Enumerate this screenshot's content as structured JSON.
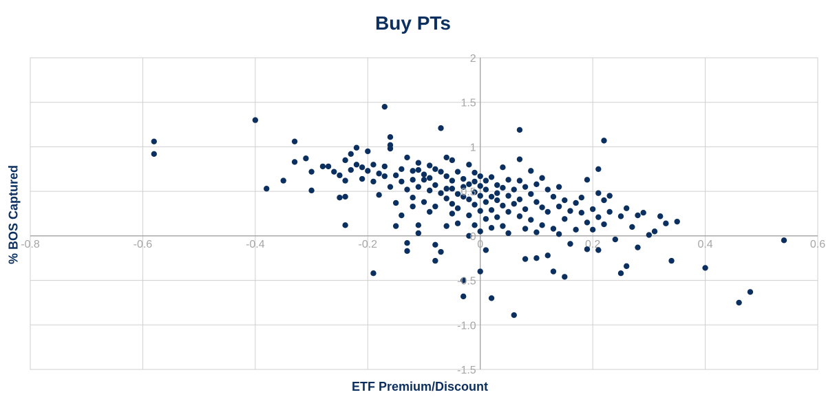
{
  "chart_data": {
    "type": "scatter",
    "title": "Buy PTs",
    "xlabel": "ETF Premium/Discount",
    "ylabel": "% BOS Captured",
    "xlim": [
      -0.8,
      0.6
    ],
    "ylim": [
      -1.5,
      2
    ],
    "x_ticks": [
      -0.8,
      -0.6,
      -0.4,
      -0.2,
      0,
      0.2,
      0.4,
      0.6
    ],
    "x_tick_labels": [
      "-0.8",
      "-0.6",
      "-0.4",
      "-0.2",
      "0",
      "0.2",
      "0.4",
      "0.6"
    ],
    "y_ticks": [
      -1.5,
      -1,
      -0.5,
      0,
      0.5,
      1,
      1.5,
      2
    ],
    "y_tick_labels": [
      "-1.5",
      "-1.0",
      "-0.5",
      "0",
      "0.5",
      "1",
      "1.5",
      "2"
    ],
    "grid": true,
    "colors": {
      "points": "#0b2f5e",
      "grid": "#cfcfcf",
      "title": "#0b2f5e",
      "ticks": "#a6a6a6"
    },
    "points": [
      [
        -0.58,
        1.06
      ],
      [
        -0.58,
        0.92
      ],
      [
        -0.4,
        1.3
      ],
      [
        -0.38,
        0.53
      ],
      [
        -0.35,
        0.62
      ],
      [
        -0.33,
        1.06
      ],
      [
        -0.33,
        0.83
      ],
      [
        -0.31,
        0.87
      ],
      [
        -0.3,
        0.51
      ],
      [
        -0.3,
        0.72
      ],
      [
        -0.28,
        0.78
      ],
      [
        -0.27,
        0.78
      ],
      [
        -0.26,
        0.72
      ],
      [
        -0.25,
        0.68
      ],
      [
        -0.25,
        0.43
      ],
      [
        -0.24,
        0.62
      ],
      [
        -0.24,
        0.85
      ],
      [
        -0.24,
        0.12
      ],
      [
        -0.24,
        0.44
      ],
      [
        -0.23,
        0.92
      ],
      [
        -0.23,
        0.74
      ],
      [
        -0.22,
        0.99
      ],
      [
        -0.22,
        0.8
      ],
      [
        -0.21,
        0.64
      ],
      [
        -0.21,
        0.77
      ],
      [
        -0.2,
        0.95
      ],
      [
        -0.2,
        0.73
      ],
      [
        -0.19,
        0.8
      ],
      [
        -0.19,
        0.61
      ],
      [
        -0.19,
        -0.42
      ],
      [
        -0.18,
        0.7
      ],
      [
        -0.18,
        0.46
      ],
      [
        -0.17,
        1.45
      ],
      [
        -0.17,
        0.67
      ],
      [
        -0.17,
        0.78
      ],
      [
        -0.16,
        1.11
      ],
      [
        -0.16,
        1.02
      ],
      [
        -0.16,
        0.98
      ],
      [
        -0.16,
        0.55
      ],
      [
        -0.15,
        0.68
      ],
      [
        -0.15,
        0.37
      ],
      [
        -0.15,
        0.11
      ],
      [
        -0.14,
        0.61
      ],
      [
        -0.14,
        0.75
      ],
      [
        -0.14,
        0.23
      ],
      [
        -0.13,
        0.88
      ],
      [
        -0.13,
        0.52
      ],
      [
        -0.13,
        -0.08
      ],
      [
        -0.13,
        -0.17
      ],
      [
        -0.12,
        0.73
      ],
      [
        -0.12,
        0.63
      ],
      [
        -0.12,
        0.33
      ],
      [
        -0.12,
        0.43
      ],
      [
        -0.11,
        0.74
      ],
      [
        -0.11,
        0.82
      ],
      [
        -0.11,
        0.55
      ],
      [
        -0.11,
        0.12
      ],
      [
        -0.11,
        0.03
      ],
      [
        -0.1,
        0.63
      ],
      [
        -0.1,
        0.38
      ],
      [
        -0.1,
        0.69
      ],
      [
        -0.09,
        0.79
      ],
      [
        -0.09,
        0.51
      ],
      [
        -0.09,
        0.27
      ],
      [
        -0.09,
        0.65
      ],
      [
        -0.08,
        0.33
      ],
      [
        -0.08,
        0.75
      ],
      [
        -0.08,
        -0.1
      ],
      [
        -0.08,
        -0.28
      ],
      [
        -0.08,
        0.57
      ],
      [
        -0.07,
        1.21
      ],
      [
        -0.07,
        0.72
      ],
      [
        -0.07,
        0.48
      ],
      [
        -0.07,
        -0.18
      ],
      [
        -0.06,
        0.67
      ],
      [
        -0.06,
        0.88
      ],
      [
        -0.06,
        0.53
      ],
      [
        -0.06,
        0.42
      ],
      [
        -0.06,
        0.11
      ],
      [
        -0.05,
        0.85
      ],
      [
        -0.05,
        0.62
      ],
      [
        -0.05,
        0.36
      ],
      [
        -0.05,
        0.53
      ],
      [
        -0.05,
        0.25
      ],
      [
        -0.04,
        0.72
      ],
      [
        -0.04,
        0.47
      ],
      [
        -0.04,
        0.31
      ],
      [
        -0.04,
        0.14
      ],
      [
        -0.03,
        0.64
      ],
      [
        -0.03,
        0.44
      ],
      [
        -0.03,
        0.55
      ],
      [
        -0.03,
        -0.5
      ],
      [
        -0.03,
        -0.68
      ],
      [
        -0.02,
        0.8
      ],
      [
        -0.02,
        0.41
      ],
      [
        -0.02,
        0.23
      ],
      [
        -0.02,
        0.58
      ],
      [
        -0.02,
        0.0
      ],
      [
        -0.01,
        0.71
      ],
      [
        -0.01,
        0.49
      ],
      [
        -0.01,
        0.35
      ],
      [
        -0.01,
        0.12
      ],
      [
        -0.01,
        0.61
      ],
      [
        0.0,
        0.67
      ],
      [
        0.0,
        0.45
      ],
      [
        0.0,
        0.28
      ],
      [
        0.0,
        0.05
      ],
      [
        0.0,
        -0.4
      ],
      [
        0.0,
        0.56
      ],
      [
        0.01,
        0.52
      ],
      [
        0.01,
        0.38
      ],
      [
        0.01,
        0.62
      ],
      [
        0.01,
        -0.16
      ],
      [
        0.01,
        0.19
      ],
      [
        0.02,
        0.44
      ],
      [
        0.02,
        0.66
      ],
      [
        0.02,
        0.29
      ],
      [
        0.02,
        -0.7
      ],
      [
        0.02,
        0.09
      ],
      [
        0.03,
        0.57
      ],
      [
        0.03,
        0.4
      ],
      [
        0.03,
        0.21
      ],
      [
        0.03,
        0.48
      ],
      [
        0.04,
        0.77
      ],
      [
        0.04,
        0.34
      ],
      [
        0.04,
        0.54
      ],
      [
        0.04,
        0.11
      ],
      [
        0.05,
        0.63
      ],
      [
        0.05,
        0.45
      ],
      [
        0.05,
        0.27
      ],
      [
        0.05,
        0.03
      ],
      [
        0.06,
        0.52
      ],
      [
        0.06,
        -0.89
      ],
      [
        0.06,
        0.36
      ],
      [
        0.07,
        1.19
      ],
      [
        0.07,
        0.86
      ],
      [
        0.07,
        0.62
      ],
      [
        0.07,
        0.41
      ],
      [
        0.07,
        0.22
      ],
      [
        0.08,
        0.55
      ],
      [
        0.08,
        0.3
      ],
      [
        0.08,
        0.08
      ],
      [
        0.08,
        -0.26
      ],
      [
        0.09,
        0.73
      ],
      [
        0.09,
        0.47
      ],
      [
        0.09,
        0.18
      ],
      [
        0.1,
        0.58
      ],
      [
        0.1,
        0.38
      ],
      [
        0.1,
        -0.25
      ],
      [
        0.1,
        0.04
      ],
      [
        0.11,
        0.65
      ],
      [
        0.11,
        0.32
      ],
      [
        0.11,
        0.12
      ],
      [
        0.12,
        0.52
      ],
      [
        0.12,
        -0.22
      ],
      [
        0.12,
        0.27
      ],
      [
        0.13,
        0.44
      ],
      [
        0.13,
        0.08
      ],
      [
        0.13,
        -0.4
      ],
      [
        0.14,
        0.55
      ],
      [
        0.14,
        0.33
      ],
      [
        0.14,
        0.02
      ],
      [
        0.15,
        -0.46
      ],
      [
        0.15,
        0.4
      ],
      [
        0.15,
        0.19
      ],
      [
        0.16,
        0.28
      ],
      [
        0.16,
        -0.09
      ],
      [
        0.17,
        0.37
      ],
      [
        0.17,
        0.07
      ],
      [
        0.18,
        0.26
      ],
      [
        0.18,
        0.43
      ],
      [
        0.19,
        0.15
      ],
      [
        0.19,
        0.63
      ],
      [
        0.19,
        -0.15
      ],
      [
        0.2,
        0.3
      ],
      [
        0.2,
        0.07
      ],
      [
        0.21,
        0.75
      ],
      [
        0.21,
        0.48
      ],
      [
        0.21,
        0.21
      ],
      [
        0.21,
        -0.16
      ],
      [
        0.22,
        1.07
      ],
      [
        0.22,
        0.4
      ],
      [
        0.22,
        0.13
      ],
      [
        0.23,
        0.27
      ],
      [
        0.23,
        0.45
      ],
      [
        0.24,
        -0.04
      ],
      [
        0.25,
        0.22
      ],
      [
        0.25,
        -0.42
      ],
      [
        0.26,
        0.31
      ],
      [
        0.26,
        -0.34
      ],
      [
        0.27,
        0.1
      ],
      [
        0.28,
        0.23
      ],
      [
        0.28,
        -0.13
      ],
      [
        0.29,
        0.26
      ],
      [
        0.3,
        0.01
      ],
      [
        0.31,
        0.05
      ],
      [
        0.32,
        0.22
      ],
      [
        0.33,
        0.14
      ],
      [
        0.34,
        -0.28
      ],
      [
        0.35,
        0.16
      ],
      [
        0.4,
        -0.36
      ],
      [
        0.46,
        -0.75
      ],
      [
        0.48,
        -0.63
      ],
      [
        0.54,
        -0.05
      ]
    ]
  }
}
